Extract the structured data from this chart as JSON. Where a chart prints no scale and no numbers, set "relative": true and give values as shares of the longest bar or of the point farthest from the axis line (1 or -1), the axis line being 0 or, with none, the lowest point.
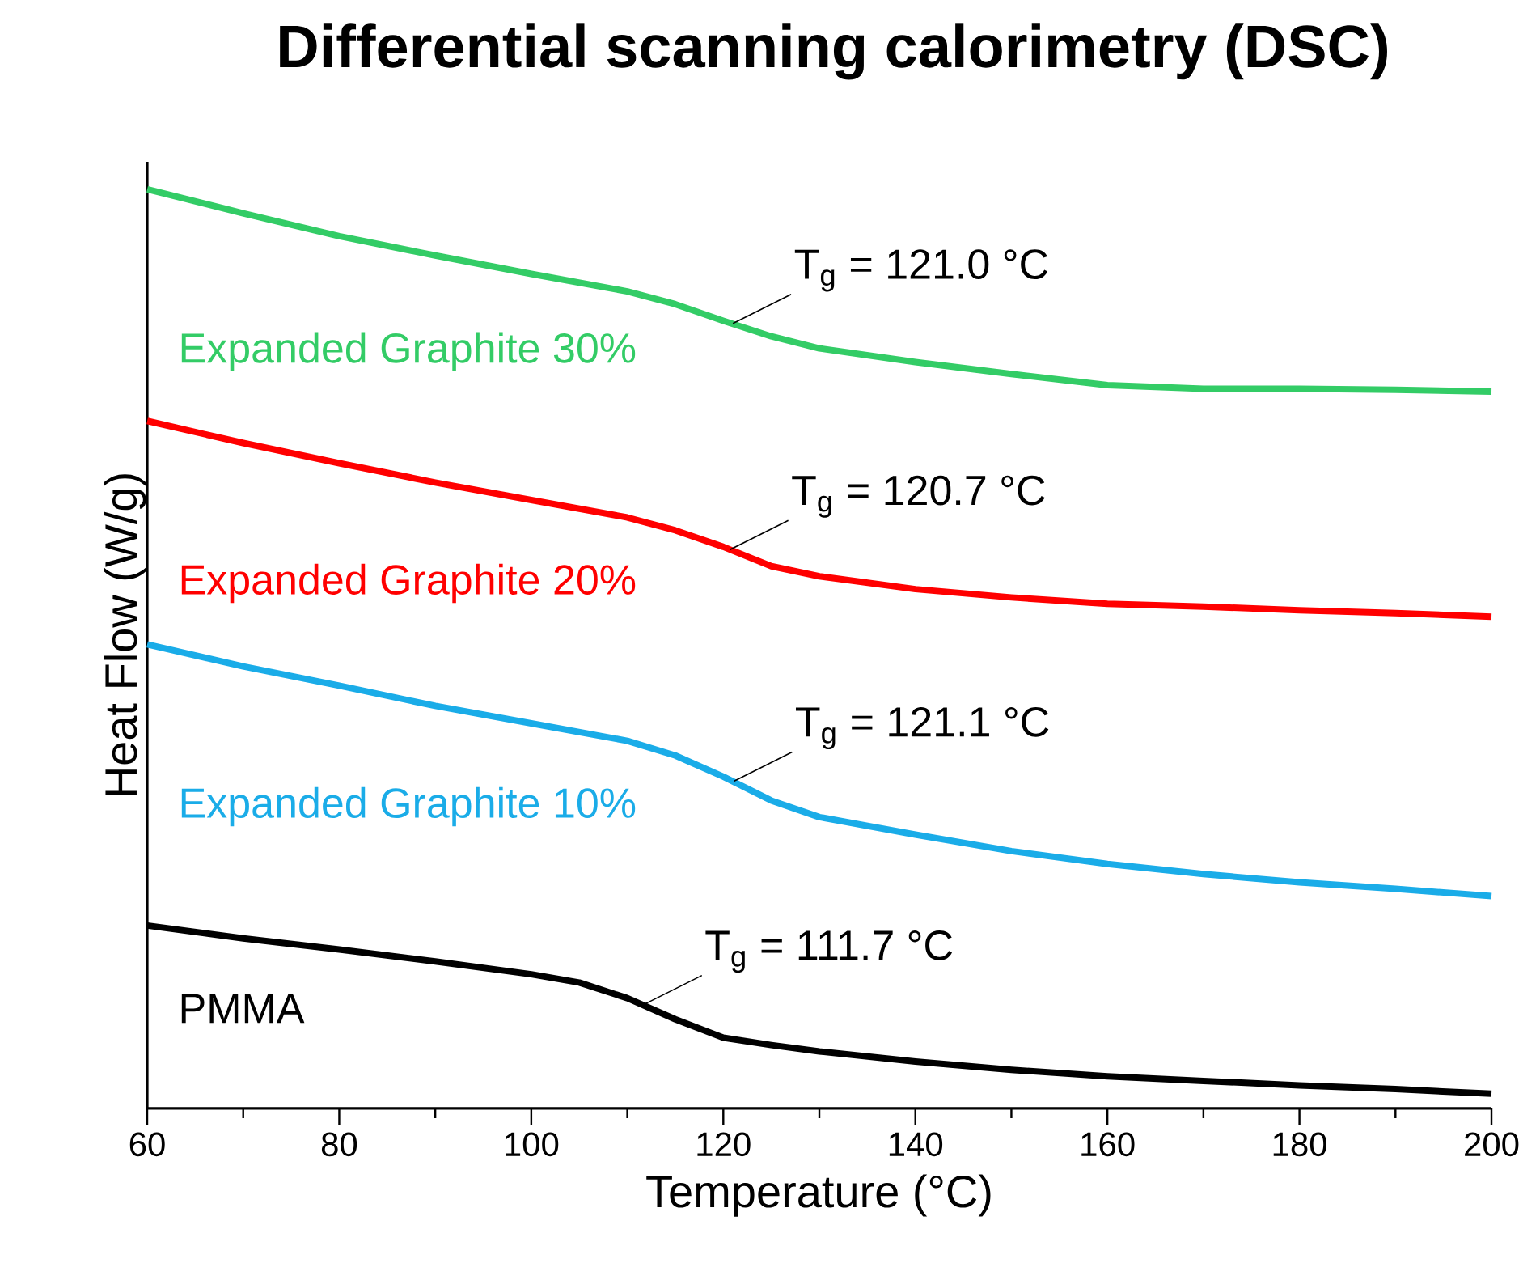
{
  "chart_data": {
    "type": "line",
    "title": "Differential scanning calorimetry (DSC)",
    "xlabel": "Temperature (°C)",
    "ylabel": "Heat Flow (W/g)",
    "relative": true,
    "xlim": [
      60,
      200
    ],
    "xticks": [
      60,
      80,
      100,
      120,
      140,
      160,
      180,
      200
    ],
    "series": [
      {
        "name": "Expanded Graphite 30%",
        "color": "#33cc66",
        "x": [
          60,
          70,
          80,
          90,
          100,
          110,
          115,
          120,
          125,
          130,
          140,
          150,
          160,
          170,
          180,
          190,
          200
        ],
        "values": [
          1.0,
          0.974,
          0.949,
          0.928,
          0.908,
          0.889,
          0.875,
          0.857,
          0.84,
          0.827,
          0.812,
          0.799,
          0.787,
          0.783,
          0.783,
          0.782,
          0.78
        ]
      },
      {
        "name": "Expanded Graphite 20%",
        "color": "#ff0000",
        "x": [
          60,
          70,
          80,
          90,
          100,
          110,
          115,
          120,
          125,
          130,
          140,
          150,
          160,
          170,
          180,
          190,
          200
        ],
        "values": [
          0.748,
          0.724,
          0.702,
          0.681,
          0.662,
          0.643,
          0.629,
          0.611,
          0.59,
          0.579,
          0.565,
          0.556,
          0.549,
          0.546,
          0.542,
          0.539,
          0.535
        ]
      },
      {
        "name": "Expanded Graphite 10%",
        "color": "#1aace8",
        "x": [
          60,
          70,
          80,
          90,
          100,
          110,
          115,
          120,
          125,
          130,
          140,
          150,
          160,
          170,
          180,
          190,
          200
        ],
        "values": [
          0.505,
          0.481,
          0.46,
          0.438,
          0.419,
          0.4,
          0.384,
          0.361,
          0.335,
          0.317,
          0.298,
          0.28,
          0.266,
          0.255,
          0.246,
          0.239,
          0.231
        ]
      },
      {
        "name": "PMMA",
        "color": "#000000",
        "x": [
          60,
          70,
          80,
          90,
          100,
          105,
          110,
          115,
          120,
          125,
          130,
          140,
          150,
          160,
          170,
          180,
          190,
          200
        ],
        "values": [
          0.199,
          0.185,
          0.173,
          0.16,
          0.146,
          0.137,
          0.12,
          0.097,
          0.077,
          0.069,
          0.062,
          0.051,
          0.042,
          0.035,
          0.03,
          0.025,
          0.021,
          0.016
        ]
      }
    ],
    "annotations": [
      {
        "text": "T$_{g}$ = 121.0 °C",
        "x": 121.0,
        "y": 0.854
      },
      {
        "text": "T$_{g}$ = 120.7 °C",
        "x": 120.7,
        "y": 0.608
      },
      {
        "text": "T$_{g}$ = 121.1 °C",
        "x": 121.1,
        "y": 0.356
      },
      {
        "text": "T$_{g}$ = 111.7 °C",
        "x": 111.7,
        "y": 0.113
      }
    ]
  }
}
